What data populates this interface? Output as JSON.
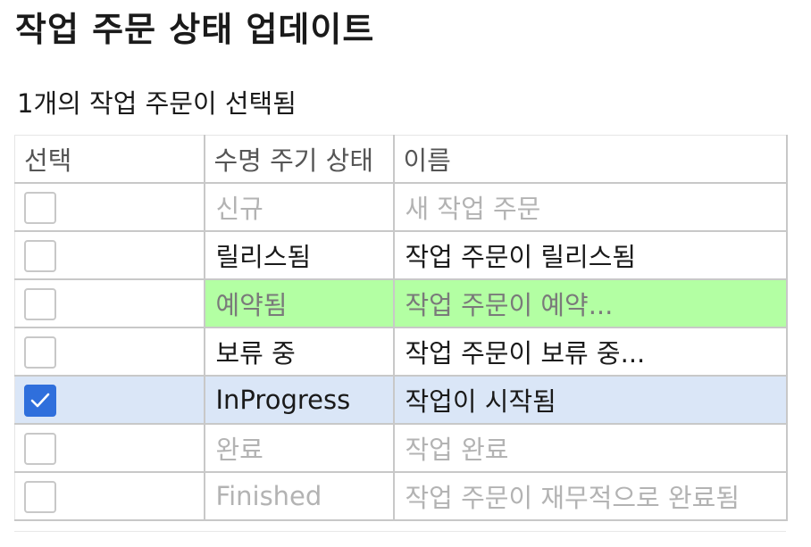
{
  "page": {
    "title": "작업 주문 상태 업데이트",
    "selection_info": "1개의 작업 주문이 선택됨"
  },
  "table": {
    "headers": [
      "선택",
      "수명 주기 상태",
      "이름"
    ],
    "rows": [
      {
        "checked": false,
        "status": "신규",
        "name": "새 작업 주문",
        "state": "disabled"
      },
      {
        "checked": false,
        "status": "릴리스됨",
        "name": "작업 주문이 릴리스됨",
        "state": "normal"
      },
      {
        "checked": false,
        "status": "예약됨",
        "name": "작업 주문이 예약...",
        "state": "reserved"
      },
      {
        "checked": false,
        "status": "보류 중",
        "name": "작업 주문이 보류 중...",
        "state": "normal"
      },
      {
        "checked": true,
        "status": "InProgress",
        "name": "작업이 시작됨",
        "state": "selected"
      },
      {
        "checked": false,
        "status": "완료",
        "name": "작업 완료",
        "state": "disabled"
      },
      {
        "checked": false,
        "status": "Finished",
        "name": "작업 주문이 재무적으로 완료됨",
        "state": "disabled"
      }
    ]
  },
  "colors": {
    "reserved_highlight": "#b3ffa3",
    "selected_highlight": "#dae6f7",
    "checkbox_checked": "#2f6fdc"
  },
  "icons": {
    "checkmark": "checkmark-icon"
  }
}
